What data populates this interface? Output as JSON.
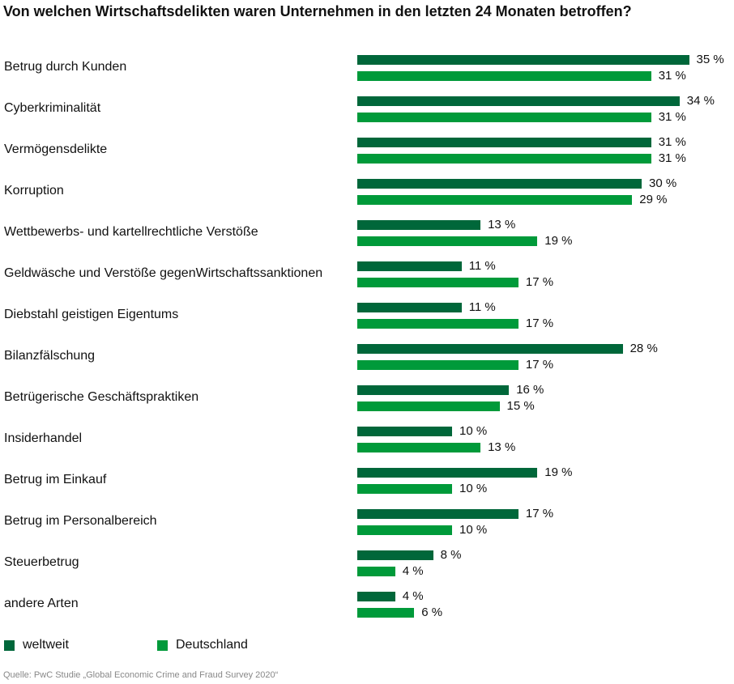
{
  "chart_data": {
    "type": "bar",
    "orientation": "horizontal",
    "title": "Von welchen Wirtschaftsdelikten waren Unternehmen in den letzten 24 Monaten betroffen?",
    "categories": [
      "Betrug durch Kunden",
      "Cyberkriminalität",
      "Vermögensdelikte",
      "Korruption",
      "Wettbewerbs- und kartellrechtliche Verstöße",
      "Geldwäsche und Verstöße gegenWirtschaftssanktionen",
      "Diebstahl geistigen Eigentums",
      "Bilanzfälschung",
      "Betrügerische Geschäftspraktiken",
      "Insiderhandel",
      "Betrug im Einkauf",
      "Betrug im Personalbereich",
      "Steuerbetrug",
      "andere Arten"
    ],
    "series": [
      {
        "name": "weltweit",
        "color": "#00673a",
        "values": [
          35,
          34,
          31,
          30,
          13,
          11,
          11,
          28,
          16,
          10,
          19,
          17,
          8,
          4
        ]
      },
      {
        "name": "Deutschland",
        "color": "#009a3a",
        "values": [
          31,
          31,
          31,
          29,
          19,
          17,
          17,
          17,
          15,
          13,
          10,
          10,
          4,
          6
        ]
      }
    ],
    "unit": " %",
    "xlim": [
      0,
      35
    ],
    "grid": false,
    "legend_position": "bottom-left",
    "source": "Quelle: PwC Studie „Global Economic Crime and Fraud Survey 2020“"
  }
}
